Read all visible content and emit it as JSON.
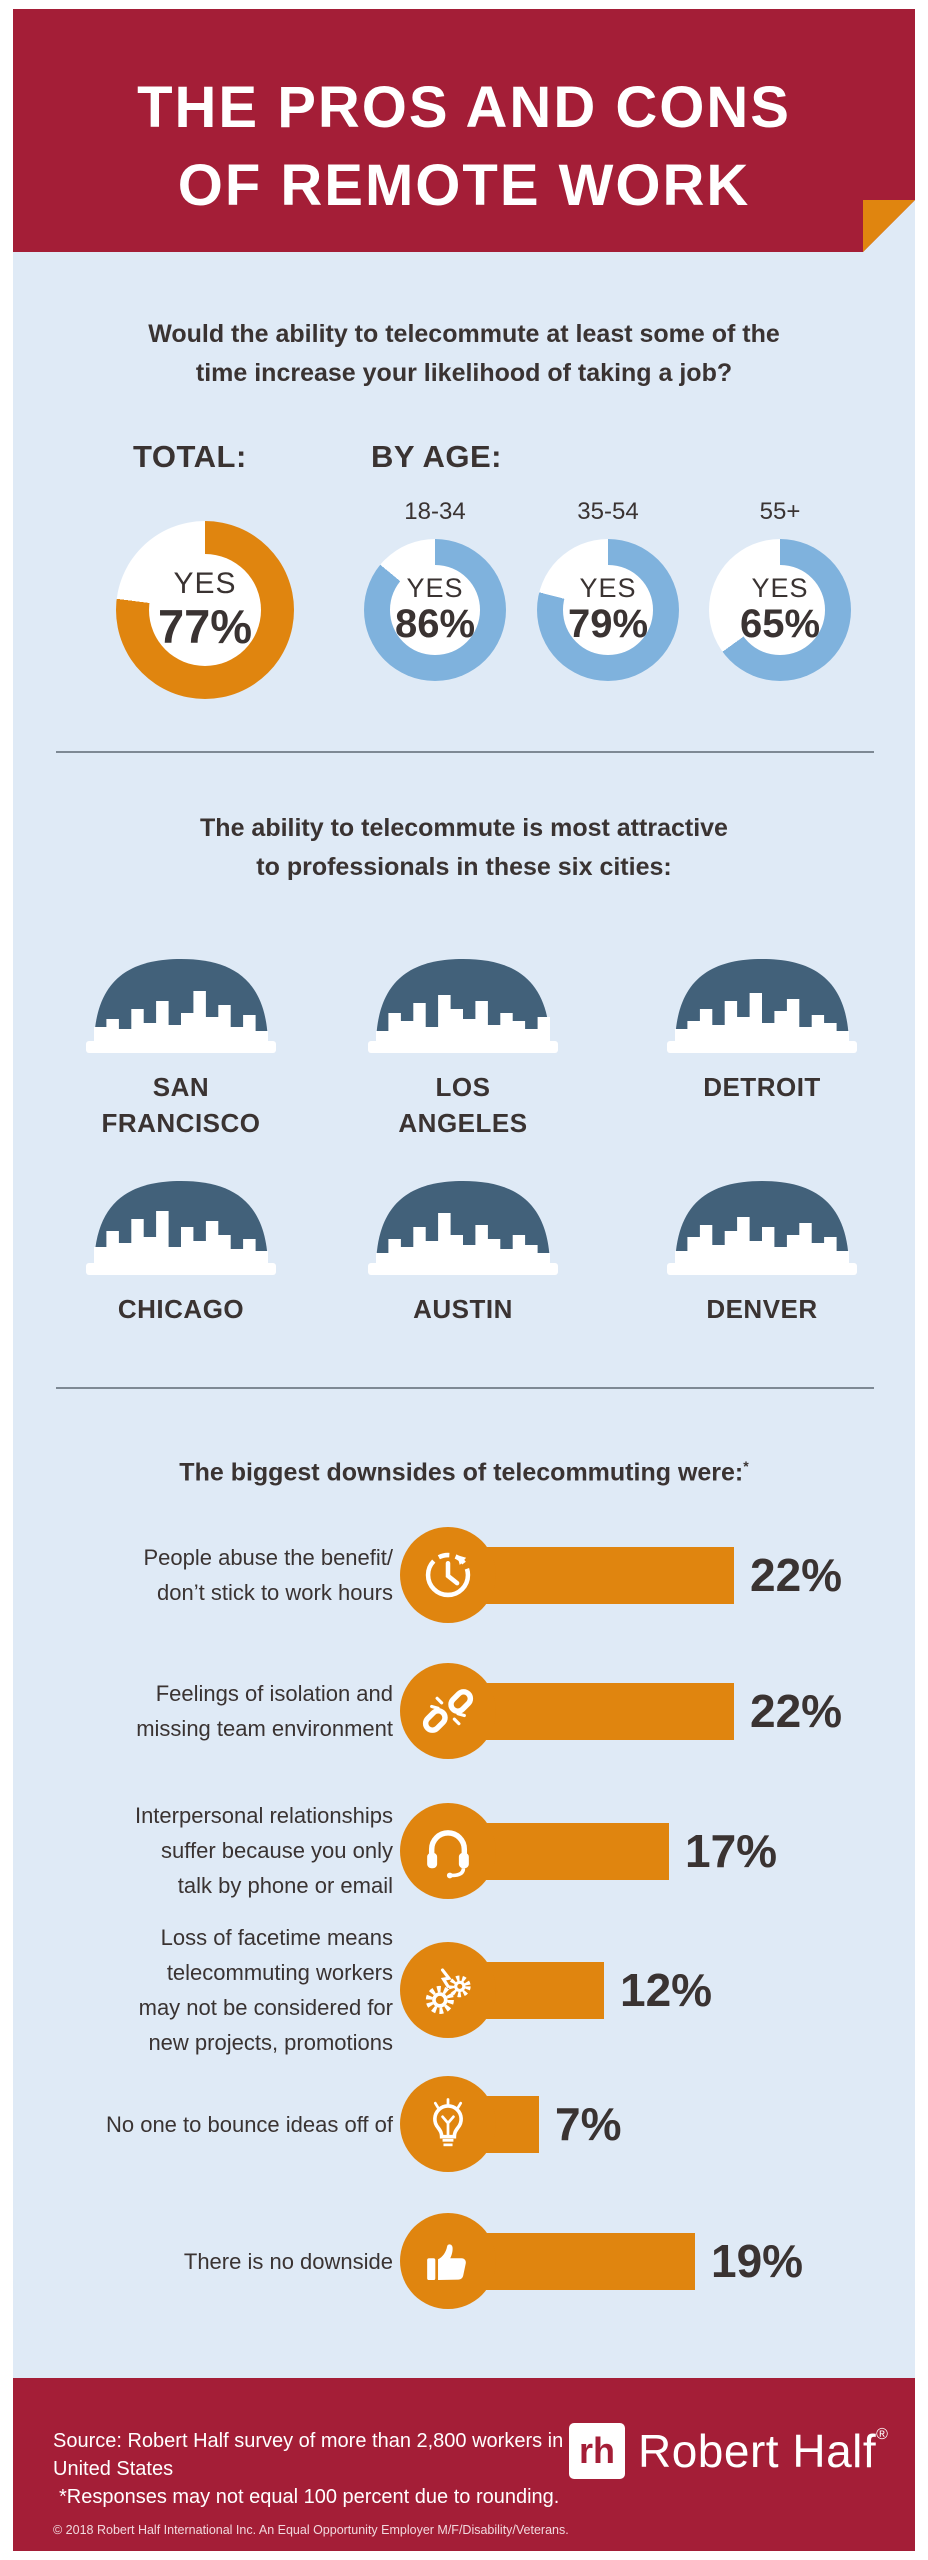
{
  "header": {
    "title_lines": [
      "THE PROS AND CONS",
      "OF REMOTE WORK"
    ]
  },
  "survey": {
    "question_lines": [
      "Would the ability to telecommute at least some of the",
      "time increase your likelihood of taking a job?"
    ],
    "total_label": "TOTAL:",
    "by_age_label": "BY AGE:",
    "total": {
      "answer": "YES",
      "pct": 77,
      "pct_label": "77%"
    },
    "age_groups": [
      {
        "label": "18-34",
        "answer": "YES",
        "pct": 86,
        "pct_label": "86%"
      },
      {
        "label": "35-54",
        "answer": "YES",
        "pct": 79,
        "pct_label": "79%"
      },
      {
        "label": "55+",
        "answer": "YES",
        "pct": 65,
        "pct_label": "65%"
      }
    ]
  },
  "cities": {
    "heading_lines": [
      "The ability to telecommute is most attractive",
      "to professionals in these six cities:"
    ],
    "items": [
      {
        "name_lines": [
          "SAN",
          "FRANCISCO"
        ]
      },
      {
        "name_lines": [
          "LOS",
          "ANGELES"
        ]
      },
      {
        "name_lines": [
          "DETROIT"
        ]
      },
      {
        "name_lines": [
          "CHICAGO"
        ]
      },
      {
        "name_lines": [
          "AUSTIN"
        ]
      },
      {
        "name_lines": [
          "DENVER"
        ]
      }
    ]
  },
  "downsides": {
    "heading": "The biggest downsides of telecommuting were:",
    "heading_asterisk": "*",
    "items": [
      {
        "label_lines": [
          "People abuse the benefit/",
          "don’t stick to work hours"
        ],
        "icon": "clock-icon",
        "pct": 22,
        "pct_label": "22%"
      },
      {
        "label_lines": [
          "Feelings of isolation and",
          "missing team environment"
        ],
        "icon": "broken-link-icon",
        "pct": 22,
        "pct_label": "22%"
      },
      {
        "label_lines": [
          "Interpersonal relationships",
          "suffer because you only",
          "talk by phone or email"
        ],
        "icon": "headset-icon",
        "pct": 17,
        "pct_label": "17%"
      },
      {
        "label_lines": [
          "Loss of facetime means",
          "telecommuting workers",
          "may not be considered for",
          "new projects, promotions"
        ],
        "icon": "gears-icon",
        "pct": 12,
        "pct_label": "12%"
      },
      {
        "label_lines": [
          "No one to bounce ideas off of"
        ],
        "icon": "lightbulb-icon",
        "pct": 7,
        "pct_label": "7%"
      },
      {
        "label_lines": [
          "There is no downside"
        ],
        "icon": "thumbs-up-icon",
        "pct": 19,
        "pct_label": "19%"
      }
    ]
  },
  "footer": {
    "source_lines": [
      "Source: Robert Half survey of more than 2,800 workers in the",
      "United States"
    ],
    "note_text": "*Responses may not equal 100 percent due to rounding.",
    "copyright_text": "© 2018 Robert Half International Inc. An Equal Opportunity Employer M/F/Disability/Veterans.",
    "logo_mark": "rh",
    "logo_text": "Robert Half",
    "logo_reg": "®"
  },
  "colors": {
    "red": "#A41E37",
    "orange": "#E0850F",
    "blue": "#7FB2DD",
    "slate": "#42617A",
    "background": "#DFEAF6",
    "text": "#3A3332",
    "white": "#FFFFFF"
  },
  "chart_data": [
    {
      "type": "pie",
      "subtype": "donut",
      "title": "Would the ability to telecommute at least some of the time increase your likelihood of taking a job? (YES responses)",
      "categories": [
        "Total",
        "18-34",
        "35-54",
        "55+"
      ],
      "series": [
        {
          "name": "Yes (%)",
          "values": [
            77,
            86,
            79,
            65
          ]
        }
      ],
      "unit": "percent",
      "legend_position": "none",
      "annotations": [
        "YES 77%",
        "YES 86%",
        "YES 79%",
        "YES 65%"
      ]
    },
    {
      "type": "bar",
      "orientation": "horizontal",
      "title": "The biggest downsides of telecommuting were:*",
      "categories": [
        "People abuse the benefit/don’t stick to work hours",
        "Feelings of isolation and missing team environment",
        "Interpersonal relationships suffer because you only talk by phone or email",
        "Loss of facetime means telecommuting workers may not be considered for new projects, promotions",
        "No one to bounce ideas off of",
        "There is no downside"
      ],
      "values": [
        22,
        22,
        17,
        12,
        7,
        19
      ],
      "unit": "percent",
      "xlim": [
        0,
        25
      ],
      "grid": false
    }
  ]
}
